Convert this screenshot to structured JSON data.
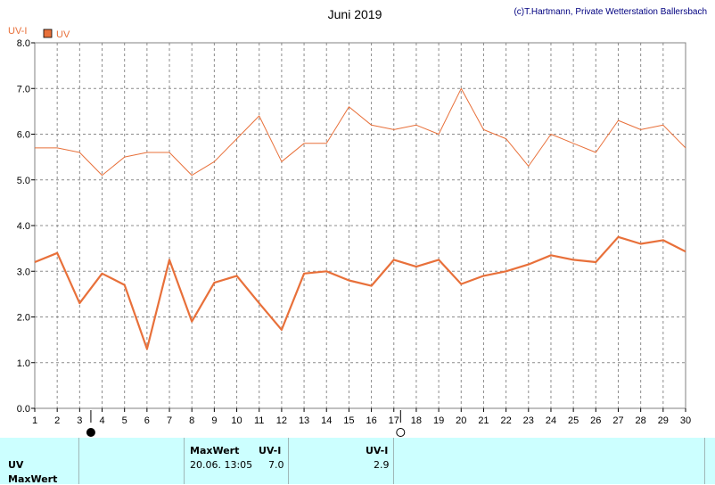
{
  "chart_data": {
    "type": "line",
    "title": "Juni 2019",
    "credit": "(c)T.Hartmann, Private Wetterstation Ballersbach",
    "ylabel": "UV-I",
    "legend": "UV",
    "ylim": [
      0,
      8
    ],
    "xlim": [
      1,
      30
    ],
    "yticks": [
      "0.0",
      "1.0",
      "2.0",
      "3.0",
      "4.0",
      "5.0",
      "6.0",
      "7.0",
      "8.0"
    ],
    "xticks": [
      "1",
      "2",
      "3",
      "4",
      "5",
      "6",
      "7",
      "8",
      "9",
      "10",
      "11",
      "12",
      "13",
      "14",
      "15",
      "16",
      "17",
      "18",
      "19",
      "20",
      "21",
      "22",
      "23",
      "24",
      "25",
      "26",
      "27",
      "28",
      "29",
      "30"
    ],
    "moon_phases": [
      {
        "day": 3.5,
        "phase": "new"
      },
      {
        "day": 17.3,
        "phase": "full"
      }
    ],
    "series": [
      {
        "values": [
          5.7,
          5.7,
          5.6,
          5.1,
          5.5,
          5.6,
          5.6,
          5.1,
          5.4,
          5.9,
          6.4,
          5.4,
          5.8,
          5.8,
          6.6,
          6.2,
          6.1,
          6.2,
          6.0,
          7.0,
          6.1,
          5.9,
          5.3,
          6.0,
          5.8,
          5.6,
          6.3,
          6.1,
          6.2,
          5.7
        ],
        "color": "#e8703a",
        "style": "thin"
      },
      {
        "values": [
          3.2,
          3.4,
          2.3,
          2.95,
          2.7,
          1.3,
          3.25,
          1.9,
          2.75,
          2.9,
          2.3,
          1.72,
          2.95,
          3.0,
          2.8,
          2.68,
          3.25,
          3.1,
          3.25,
          2.72,
          2.9,
          3.0,
          3.15,
          3.35,
          3.25,
          3.2,
          3.75,
          3.6,
          3.68,
          3.43
        ],
        "color": "#e8703a",
        "style": "thick"
      }
    ]
  },
  "footer": {
    "row_label": "UV",
    "row_label2": "MaxWert",
    "max_header": "MaxWert",
    "unit_header": "UV-I",
    "max_datetime": "20.06.  13:05",
    "max_value": "7.0",
    "avg_header": "UV-I",
    "avg_value": "2.9"
  }
}
